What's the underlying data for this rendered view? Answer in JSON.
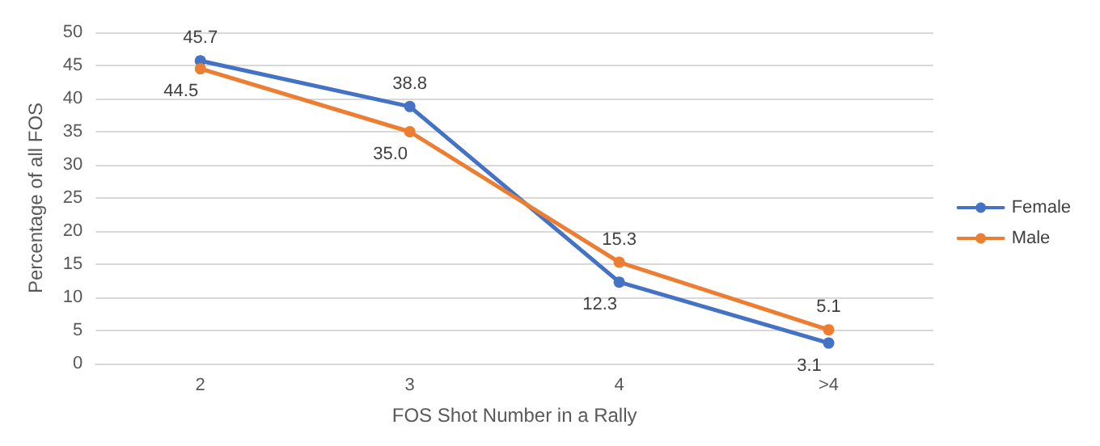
{
  "chart_data": {
    "type": "line",
    "xlabel": "FOS Shot Number in a Rally",
    "ylabel": "Percentage of all FOS",
    "categories": [
      "2",
      "3",
      "4",
      ">4"
    ],
    "series": [
      {
        "name": "Female",
        "color": "#4472c4",
        "values": [
          45.7,
          38.8,
          12.3,
          3.1
        ],
        "value_labels": [
          "45.7",
          "38.8",
          "12.3",
          "3.1"
        ]
      },
      {
        "name": "Male",
        "color": "#ed7d31",
        "values": [
          44.5,
          35.0,
          15.3,
          5.1
        ],
        "value_labels": [
          "44.5",
          "35.0",
          "15.3",
          "5.1"
        ]
      }
    ],
    "ylim": [
      0,
      50
    ],
    "yticks": [
      0,
      5,
      10,
      15,
      20,
      25,
      30,
      35,
      40,
      45,
      50
    ],
    "grid": "y",
    "legend": "right",
    "marker": "circle",
    "line_style": "solid"
  }
}
